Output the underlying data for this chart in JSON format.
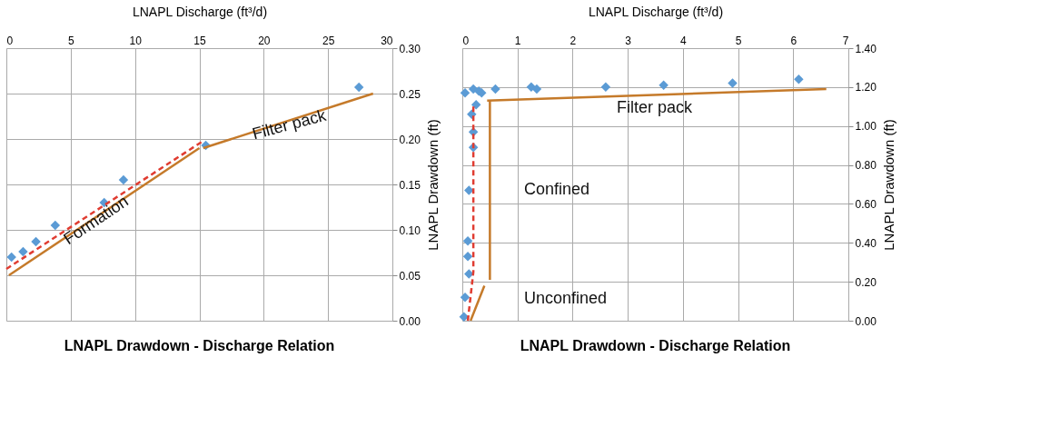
{
  "chart_data": [
    {
      "type": "scatter",
      "title": "LNAPL Drawdown - Discharge Relation",
      "xlabel": "LNAPL Discharge (ft³/d)",
      "ylabel": "LNAPL Drawdown (ft)",
      "xlim": [
        0,
        30
      ],
      "xticks": [
        0,
        5,
        10,
        15,
        20,
        25,
        30
      ],
      "ylim": [
        0,
        0.3
      ],
      "yticks": [
        {
          "value": 0,
          "label": "0.00"
        },
        {
          "value": 0.05,
          "label": "0.05"
        },
        {
          "value": 0.1,
          "label": "0.10"
        },
        {
          "value": 0.15,
          "label": "0.15"
        },
        {
          "value": 0.2,
          "label": "0.20"
        },
        {
          "value": 0.25,
          "label": "0.25"
        },
        {
          "value": 0.3,
          "label": "0.30"
        }
      ],
      "grid": true,
      "series": [
        {
          "marker": "diamond",
          "color": "#5b9bd5",
          "x": [
            0.4,
            1.3,
            2.3,
            3.8,
            7.6,
            9.1,
            15.5,
            27.4
          ],
          "values": [
            0.07,
            0.076,
            0.087,
            0.105,
            0.13,
            0.155,
            0.193,
            0.257
          ]
        },
        {
          "type": "line",
          "line_style": "dashed",
          "color": "#e03c31",
          "x": [
            0,
            15.2
          ],
          "values": [
            0.057,
            0.197
          ]
        },
        {
          "type": "line",
          "line_style": "solid",
          "color": "#c57a2a",
          "x": [
            0.2,
            15
          ],
          "values": [
            0.05,
            0.19
          ]
        },
        {
          "type": "line",
          "line_style": "solid",
          "color": "#c57a2a",
          "x": [
            15.3,
            28.5
          ],
          "values": [
            0.19,
            0.25
          ]
        }
      ],
      "annotations": [
        {
          "text": "Formation",
          "x": 7,
          "y": 0.11
        },
        {
          "text": "Filter pack",
          "x": 22,
          "y": 0.215
        }
      ]
    },
    {
      "type": "scatter",
      "title": "LNAPL Drawdown - Discharge Relation",
      "xlabel": "LNAPL Discharge (ft³/d)",
      "ylabel": "LNAPL Drawdown (ft)",
      "xlim": [
        0,
        7
      ],
      "xticks": [
        0,
        1,
        2,
        3,
        4,
        5,
        6,
        7
      ],
      "ylim": [
        0,
        1.4
      ],
      "yticks": [
        {
          "value": 0,
          "label": "0.00"
        },
        {
          "value": 0.2,
          "label": "0.20"
        },
        {
          "value": 0.4,
          "label": "0.40"
        },
        {
          "value": 0.6,
          "label": "0.60"
        },
        {
          "value": 0.8,
          "label": "0.80"
        },
        {
          "value": 1.0,
          "label": "1.00"
        },
        {
          "value": 1.2,
          "label": "1.20"
        },
        {
          "value": 1.4,
          "label": "1.40"
        }
      ],
      "grid": true,
      "series": [
        {
          "marker": "diamond",
          "color": "#5b9bd5",
          "x": [
            0.05,
            0.2,
            0.3,
            0.35,
            0.6,
            1.25,
            1.35,
            2.6,
            3.65,
            4.9,
            6.1,
            0.25,
            0.17,
            0.2,
            0.2,
            0.12,
            0.1,
            0.1,
            0.12,
            0.05,
            0.03
          ],
          "values": [
            1.17,
            1.19,
            1.18,
            1.17,
            1.19,
            1.2,
            1.19,
            1.2,
            1.21,
            1.22,
            1.24,
            1.11,
            1.06,
            0.97,
            0.89,
            0.67,
            0.41,
            0.33,
            0.24,
            0.12,
            0.02
          ]
        },
        {
          "type": "line",
          "line_style": "dashed",
          "color": "#e03c31",
          "x": [
            0.1,
            0.2,
            0.2
          ],
          "values": [
            0.0,
            0.25,
            1.1
          ]
        },
        {
          "type": "line",
          "line_style": "solid",
          "color": "#c57a2a",
          "x": [
            0.45,
            6.6
          ],
          "values": [
            1.13,
            1.19
          ]
        },
        {
          "type": "line",
          "line_style": "solid",
          "color": "#c57a2a",
          "x": [
            0.5,
            0.5
          ],
          "values": [
            1.13,
            0.21
          ]
        },
        {
          "type": "line",
          "line_style": "solid",
          "color": "#c57a2a",
          "x": [
            0.15,
            0.4
          ],
          "values": [
            0.0,
            0.18
          ]
        }
      ],
      "annotations": [
        "Filter pack",
        "Confined",
        "Unconfined"
      ]
    }
  ]
}
